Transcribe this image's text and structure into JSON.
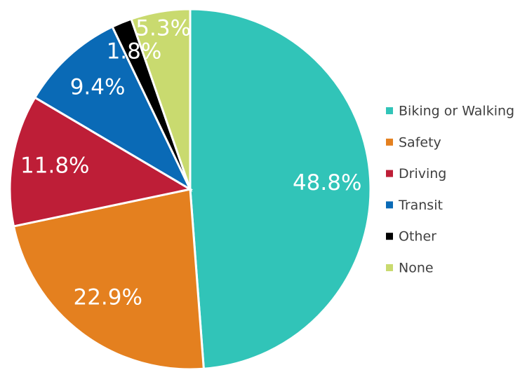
{
  "chart_data": {
    "type": "pie",
    "categories": [
      "Biking or Walking",
      "Safety",
      "Driving",
      "Transit",
      "Other",
      "None"
    ],
    "values": [
      48.8,
      22.9,
      11.8,
      9.4,
      1.8,
      5.3
    ],
    "value_labels": [
      "48.8%",
      "22.9%",
      "11.8%",
      "9.4%",
      "1.8%",
      "5.3%"
    ],
    "colors": [
      "#31c4b8",
      "#e4801f",
      "#be1e37",
      "#0a6ab6",
      "#000000",
      "#c9da6f"
    ],
    "legend": "right"
  }
}
